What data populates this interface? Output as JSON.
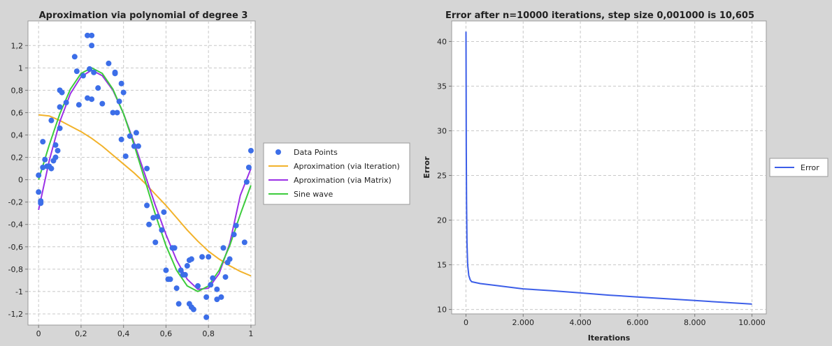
{
  "chart_data": [
    {
      "type": "scatter",
      "title": "Aproximation via polynomial of degree 3",
      "xlabel": "",
      "ylabel": "",
      "xlim": [
        -0.05,
        1.02
      ],
      "ylim": [
        -1.3,
        1.42
      ],
      "grid": true,
      "legend_placement": "right",
      "x_ticks": [
        {
          "v": 0,
          "label": "0"
        },
        {
          "v": 0.2,
          "label": "0,2"
        },
        {
          "v": 0.4,
          "label": "0,4"
        },
        {
          "v": 0.6,
          "label": "0,6"
        },
        {
          "v": 0.8,
          "label": "0,8"
        },
        {
          "v": 1,
          "label": "1"
        }
      ],
      "y_ticks": [
        {
          "v": 1.2,
          "label": "1,2"
        },
        {
          "v": 1.0,
          "label": "1"
        },
        {
          "v": 0.8,
          "label": "0,8"
        },
        {
          "v": 0.6,
          "label": "0,6"
        },
        {
          "v": 0.4,
          "label": "0,4"
        },
        {
          "v": 0.2,
          "label": "0,2"
        },
        {
          "v": 0,
          "label": "0"
        },
        {
          "v": -0.2,
          "label": "-0,2"
        },
        {
          "v": -0.4,
          "label": "-0,4"
        },
        {
          "v": -0.6,
          "label": "-0,6"
        },
        {
          "v": -0.8,
          "label": "-0,8"
        },
        {
          "v": -1.0,
          "label": "-1"
        },
        {
          "v": -1.2,
          "label": "-1,2"
        }
      ],
      "series": [
        {
          "name": "Data Points",
          "kind": "points",
          "color": "#3c6ee8",
          "points": [
            [
              0.0,
              0.04
            ],
            [
              0.0,
              -0.11
            ],
            [
              0.01,
              -0.19
            ],
            [
              0.01,
              -0.21
            ],
            [
              0.02,
              0.34
            ],
            [
              0.02,
              0.11
            ],
            [
              0.03,
              0.18
            ],
            [
              0.04,
              0.12
            ],
            [
              0.05,
              0.12
            ],
            [
              0.06,
              0.53
            ],
            [
              0.06,
              0.1
            ],
            [
              0.07,
              0.17
            ],
            [
              0.08,
              0.2
            ],
            [
              0.08,
              0.31
            ],
            [
              0.09,
              0.26
            ],
            [
              0.1,
              0.65
            ],
            [
              0.1,
              0.8
            ],
            [
              0.1,
              0.46
            ],
            [
              0.11,
              0.78
            ],
            [
              0.13,
              0.69
            ],
            [
              0.17,
              1.1
            ],
            [
              0.18,
              0.97
            ],
            [
              0.19,
              0.67
            ],
            [
              0.21,
              0.93
            ],
            [
              0.23,
              1.29
            ],
            [
              0.23,
              0.73
            ],
            [
              0.24,
              0.99
            ],
            [
              0.25,
              1.2
            ],
            [
              0.25,
              1.29
            ],
            [
              0.25,
              0.72
            ],
            [
              0.26,
              0.96
            ],
            [
              0.28,
              0.82
            ],
            [
              0.3,
              0.68
            ],
            [
              0.33,
              1.04
            ],
            [
              0.35,
              0.6
            ],
            [
              0.36,
              0.95
            ],
            [
              0.36,
              0.96
            ],
            [
              0.37,
              0.6
            ],
            [
              0.38,
              0.7
            ],
            [
              0.39,
              0.86
            ],
            [
              0.4,
              0.78
            ],
            [
              0.39,
              0.36
            ],
            [
              0.41,
              0.21
            ],
            [
              0.43,
              0.39
            ],
            [
              0.45,
              0.3
            ],
            [
              0.46,
              0.42
            ],
            [
              0.47,
              0.3
            ],
            [
              0.51,
              0.1
            ],
            [
              0.51,
              -0.23
            ],
            [
              0.52,
              -0.4
            ],
            [
              0.54,
              -0.34
            ],
            [
              0.55,
              -0.56
            ],
            [
              0.56,
              -0.33
            ],
            [
              0.58,
              -0.45
            ],
            [
              0.59,
              -0.29
            ],
            [
              0.6,
              -0.81
            ],
            [
              0.61,
              -0.89
            ],
            [
              0.62,
              -0.89
            ],
            [
              0.63,
              -0.61
            ],
            [
              0.64,
              -0.61
            ],
            [
              0.65,
              -0.97
            ],
            [
              0.66,
              -1.11
            ],
            [
              0.67,
              -0.81
            ],
            [
              0.68,
              -0.85
            ],
            [
              0.69,
              -0.85
            ],
            [
              0.7,
              -0.77
            ],
            [
              0.71,
              -1.11
            ],
            [
              0.71,
              -0.72
            ],
            [
              0.72,
              -1.14
            ],
            [
              0.72,
              -0.71
            ],
            [
              0.73,
              -1.16
            ],
            [
              0.75,
              -0.95
            ],
            [
              0.77,
              -0.69
            ],
            [
              0.79,
              -1.05
            ],
            [
              0.79,
              -1.23
            ],
            [
              0.8,
              -0.69
            ],
            [
              0.81,
              -0.94
            ],
            [
              0.82,
              -0.88
            ],
            [
              0.84,
              -0.98
            ],
            [
              0.84,
              -1.07
            ],
            [
              0.86,
              -1.05
            ],
            [
              0.87,
              -0.61
            ],
            [
              0.88,
              -0.87
            ],
            [
              0.89,
              -0.74
            ],
            [
              0.9,
              -0.71
            ],
            [
              0.92,
              -0.49
            ],
            [
              0.93,
              -0.41
            ],
            [
              0.97,
              -0.56
            ],
            [
              0.98,
              -0.02
            ],
            [
              0.99,
              0.11
            ],
            [
              1.0,
              0.26
            ]
          ]
        },
        {
          "name": "Aproximation (via Iteration)",
          "kind": "line",
          "color": "#f2b22a",
          "points": [
            [
              0.0,
              0.58
            ],
            [
              0.05,
              0.57
            ],
            [
              0.1,
              0.53
            ],
            [
              0.15,
              0.48
            ],
            [
              0.2,
              0.43
            ],
            [
              0.25,
              0.37
            ],
            [
              0.3,
              0.3
            ],
            [
              0.35,
              0.22
            ],
            [
              0.4,
              0.14
            ],
            [
              0.45,
              0.06
            ],
            [
              0.5,
              -0.03
            ],
            [
              0.55,
              -0.13
            ],
            [
              0.6,
              -0.23
            ],
            [
              0.65,
              -0.34
            ],
            [
              0.7,
              -0.45
            ],
            [
              0.75,
              -0.55
            ],
            [
              0.8,
              -0.64
            ],
            [
              0.85,
              -0.71
            ],
            [
              0.9,
              -0.77
            ],
            [
              0.95,
              -0.82
            ],
            [
              1.0,
              -0.86
            ]
          ]
        },
        {
          "name": "Aproximation (via Matrix)",
          "kind": "line",
          "color": "#9b30e6",
          "points": [
            [
              0.0,
              -0.27
            ],
            [
              0.05,
              0.17
            ],
            [
              0.1,
              0.52
            ],
            [
              0.15,
              0.77
            ],
            [
              0.2,
              0.92
            ],
            [
              0.25,
              0.98
            ],
            [
              0.3,
              0.93
            ],
            [
              0.35,
              0.8
            ],
            [
              0.4,
              0.59
            ],
            [
              0.45,
              0.33
            ],
            [
              0.5,
              0.05
            ],
            [
              0.55,
              -0.23
            ],
            [
              0.6,
              -0.49
            ],
            [
              0.65,
              -0.72
            ],
            [
              0.7,
              -0.89
            ],
            [
              0.75,
              -0.98
            ],
            [
              0.8,
              -0.97
            ],
            [
              0.85,
              -0.84
            ],
            [
              0.9,
              -0.57
            ],
            [
              0.95,
              -0.14
            ],
            [
              1.0,
              0.1
            ]
          ]
        },
        {
          "name": "Sine wave",
          "kind": "line",
          "color": "#3ccc3c",
          "points": [
            [
              0.0,
              0.0
            ],
            [
              0.05,
              0.31
            ],
            [
              0.1,
              0.59
            ],
            [
              0.15,
              0.81
            ],
            [
              0.2,
              0.95
            ],
            [
              0.25,
              1.0
            ],
            [
              0.3,
              0.95
            ],
            [
              0.35,
              0.81
            ],
            [
              0.4,
              0.59
            ],
            [
              0.45,
              0.31
            ],
            [
              0.5,
              0.0
            ],
            [
              0.55,
              -0.31
            ],
            [
              0.6,
              -0.59
            ],
            [
              0.65,
              -0.81
            ],
            [
              0.7,
              -0.95
            ],
            [
              0.75,
              -1.0
            ],
            [
              0.8,
              -0.95
            ],
            [
              0.85,
              -0.81
            ],
            [
              0.9,
              -0.59
            ],
            [
              0.95,
              -0.31
            ],
            [
              1.0,
              -0.05
            ]
          ]
        }
      ]
    },
    {
      "type": "line",
      "title": "Error after n=10000 iterations, step size 0,001000 is 10,605",
      "xlabel": "Iterations",
      "ylabel": "Error",
      "xlim": [
        -500,
        10500
      ],
      "ylim": [
        9.5,
        42.3
      ],
      "grid": true,
      "legend_placement": "right",
      "x_ticks": [
        {
          "v": 0,
          "label": "0"
        },
        {
          "v": 2000,
          "label": "2.000"
        },
        {
          "v": 4000,
          "label": "4.000"
        },
        {
          "v": 6000,
          "label": "6.000"
        },
        {
          "v": 8000,
          "label": "8.000"
        },
        {
          "v": 10000,
          "label": "10.000"
        }
      ],
      "y_ticks": [
        {
          "v": 40,
          "label": "40"
        },
        {
          "v": 35,
          "label": "35"
        },
        {
          "v": 30,
          "label": "30"
        },
        {
          "v": 25,
          "label": "25"
        },
        {
          "v": 20,
          "label": "20"
        },
        {
          "v": 15,
          "label": "15"
        },
        {
          "v": 10,
          "label": "10"
        }
      ],
      "series": [
        {
          "name": "Error",
          "kind": "line",
          "color": "#3c5ee8",
          "points": [
            [
              0,
              41.1
            ],
            [
              5,
              35
            ],
            [
              10,
              28
            ],
            [
              20,
              22
            ],
            [
              35,
              17.5
            ],
            [
              60,
              15
            ],
            [
              100,
              13.8
            ],
            [
              150,
              13.3
            ],
            [
              200,
              13.1
            ],
            [
              500,
              12.9
            ],
            [
              1000,
              12.7
            ],
            [
              2000,
              12.3
            ],
            [
              3000,
              12.1
            ],
            [
              4000,
              11.85
            ],
            [
              5000,
              11.6
            ],
            [
              6000,
              11.4
            ],
            [
              7000,
              11.2
            ],
            [
              8000,
              11.0
            ],
            [
              9000,
              10.8
            ],
            [
              10000,
              10.6
            ]
          ]
        }
      ]
    }
  ]
}
